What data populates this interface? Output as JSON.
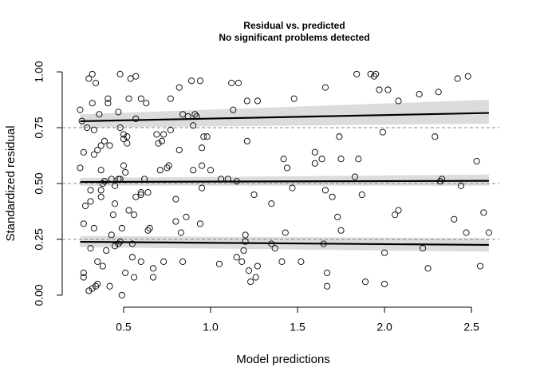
{
  "chart_data": {
    "type": "scatter",
    "title": "Residual vs. predicted",
    "subtitle": "No significant problems detected",
    "x_label": "Model predictions",
    "y_label": "Standardized residual",
    "xlim": [
      0.147,
      2.66
    ],
    "ylim": [
      -0.036,
      1.036
    ],
    "xticks": [
      {
        "value": 0.5,
        "label": "0.5"
      },
      {
        "value": 1,
        "label": "1.0"
      },
      {
        "value": 1.5,
        "label": "1.5"
      },
      {
        "value": 2,
        "label": "2.0"
      },
      {
        "value": 2.5,
        "label": "2.5"
      }
    ],
    "yticks": [
      {
        "value": 0,
        "label": "0.00"
      },
      0.25,
      {
        "value": 0.5,
        "label": "0.50"
      },
      0.75,
      {
        "value": 1,
        "label": "1.00"
      }
    ],
    "reference_lines": [
      0.25,
      0.5,
      0.75
    ],
    "quantile_fits": [
      {
        "x": [
          0.25,
          2.6
        ],
        "values": [
          0.239,
          0.225
        ],
        "lower": [
          0.215,
          0.195
        ],
        "upper": [
          0.265,
          0.255
        ]
      },
      {
        "x": [
          0.25,
          2.6
        ],
        "values": [
          0.507,
          0.512
        ],
        "lower": [
          0.49,
          0.49
        ],
        "upper": [
          0.525,
          0.54
        ]
      },
      {
        "x": [
          0.25,
          2.6
        ],
        "values": [
          0.779,
          0.816
        ],
        "lower": [
          0.75,
          0.768
        ],
        "upper": [
          0.81,
          0.875
        ]
      }
    ],
    "points": {
      "x": [
        0.25,
        0.26,
        0.25,
        0.27,
        0.27,
        0.27,
        0.27,
        0.28,
        0.29,
        0.3,
        0.3,
        0.31,
        0.31,
        0.31,
        0.32,
        0.32,
        0.32,
        0.33,
        0.33,
        0.33,
        0.34,
        0.34,
        0.35,
        0.35,
        0.35,
        0.36,
        0.37,
        0.37,
        0.37,
        0.37,
        0.38,
        0.38,
        0.39,
        0.39,
        0.4,
        0.41,
        0.41,
        0.42,
        0.42,
        0.43,
        0.43,
        0.44,
        0.45,
        0.45,
        0.45,
        0.47,
        0.47,
        0.47,
        0.48,
        0.48,
        0.48,
        0.48,
        0.49,
        0.49,
        0.5,
        0.5,
        0.5,
        0.51,
        0.51,
        0.52,
        0.52,
        0.53,
        0.53,
        0.54,
        0.55,
        0.55,
        0.56,
        0.56,
        0.57,
        0.57,
        0.57,
        0.6,
        0.6,
        0.6,
        0.6,
        0.62,
        0.63,
        0.64,
        0.64,
        0.65,
        0.67,
        0.67,
        0.69,
        0.7,
        0.71,
        0.72,
        0.73,
        0.73,
        0.75,
        0.76,
        0.77,
        0.77,
        0.8,
        0.8,
        0.82,
        0.82,
        0.83,
        0.84,
        0.84,
        0.86,
        0.87,
        0.89,
        0.9,
        0.9,
        0.91,
        0.92,
        0.94,
        0.94,
        0.95,
        0.95,
        0.95,
        0.96,
        0.98,
        1.0,
        1.05,
        1.06,
        1.1,
        1.12,
        1.13,
        1.15,
        1.15,
        1.16,
        1.18,
        1.19,
        1.2,
        1.2,
        1.21,
        1.21,
        1.22,
        1.23,
        1.25,
        1.26,
        1.27,
        1.27,
        1.35,
        1.35,
        1.37,
        1.41,
        1.42,
        1.43,
        1.44,
        1.47,
        1.48,
        1.52,
        1.6,
        1.6,
        1.64,
        1.65,
        1.66,
        1.66,
        1.67,
        1.67,
        1.7,
        1.73,
        1.74,
        1.75,
        1.75,
        1.83,
        1.84,
        1.85,
        1.87,
        1.89,
        1.92,
        1.94,
        1.95,
        1.97,
        1.99,
        2.0,
        2.0,
        2.02,
        2.06,
        2.08,
        2.08,
        2.2,
        2.22,
        2.25,
        2.29,
        2.31,
        2.32,
        2.33,
        2.4,
        2.42,
        2.44,
        2.47,
        2.48,
        2.53,
        2.55,
        2.57,
        2.6
      ],
      "values": [
        0.83,
        0.78,
        0.57,
        0.64,
        0.32,
        0.1,
        0.08,
        0.4,
        0.75,
        0.97,
        0.02,
        0.47,
        0.42,
        0.21,
        0.99,
        0.86,
        0.03,
        0.74,
        0.63,
        0.3,
        0.95,
        0.04,
        0.65,
        0.15,
        0.05,
        0.81,
        0.67,
        0.56,
        0.47,
        0.44,
        0.13,
        0.5,
        0.69,
        0.51,
        0.2,
        0.86,
        0.88,
        0.67,
        0.04,
        0.52,
        0.27,
        0.36,
        0.41,
        0.49,
        0.22,
        0.52,
        0.23,
        0.82,
        0.99,
        0.75,
        0.52,
        0.24,
        0.3,
        0.0,
        0.7,
        0.72,
        0.58,
        0.55,
        0.1,
        0.68,
        0.71,
        0.38,
        0.88,
        0.97,
        0.23,
        0.17,
        0.36,
        0.08,
        0.98,
        0.79,
        0.44,
        0.46,
        0.15,
        0.88,
        0.45,
        0.52,
        0.86,
        0.29,
        0.46,
        0.3,
        0.12,
        0.08,
        0.72,
        0.68,
        0.56,
        0.69,
        0.72,
        0.15,
        0.57,
        0.58,
        0.74,
        0.88,
        0.43,
        0.33,
        0.93,
        0.65,
        0.28,
        0.81,
        0.15,
        0.35,
        0.8,
        0.96,
        0.56,
        0.76,
        0.81,
        0.8,
        0.32,
        0.96,
        0.66,
        0.48,
        0.58,
        0.71,
        0.71,
        0.56,
        0.14,
        0.52,
        0.52,
        0.95,
        0.83,
        0.17,
        0.51,
        0.95,
        0.15,
        0.2,
        0.27,
        0.24,
        0.87,
        0.69,
        0.11,
        0.06,
        0.45,
        0.08,
        0.13,
        0.87,
        0.41,
        0.23,
        0.21,
        0.15,
        0.61,
        0.28,
        0.57,
        0.48,
        0.88,
        0.15,
        0.64,
        0.59,
        0.61,
        0.23,
        0.93,
        0.47,
        0.1,
        0.04,
        0.44,
        0.35,
        0.71,
        0.29,
        0.61,
        0.53,
        0.99,
        0.61,
        0.45,
        0.06,
        0.99,
        0.98,
        0.99,
        0.92,
        0.73,
        0.19,
        0.05,
        0.92,
        0.36,
        0.38,
        0.87,
        0.9,
        0.21,
        0.12,
        0.71,
        0.91,
        0.51,
        0.52,
        0.34,
        0.97,
        0.49,
        0.28,
        0.98,
        0.6,
        0.13,
        0.37,
        0.28
      ]
    }
  }
}
